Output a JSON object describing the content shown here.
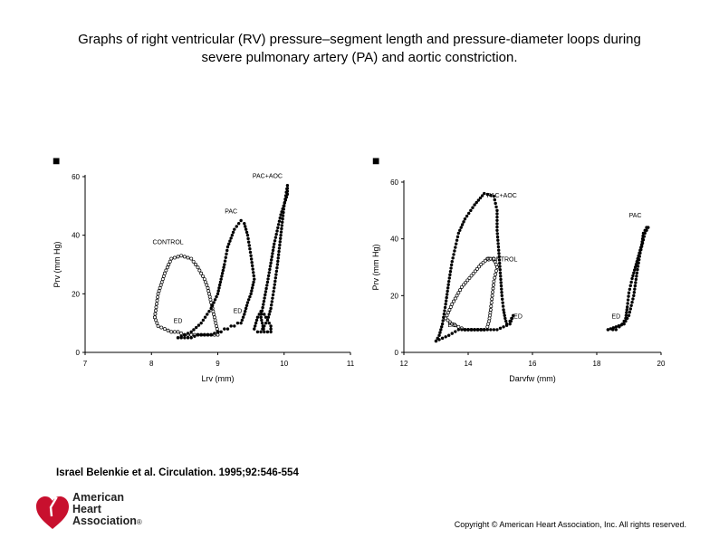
{
  "title_lines": [
    "Graphs of right ventricular (RV) pressure–segment length and pressure-diameter loops during",
    "severe pulmonary artery (PA) and aortic constriction."
  ],
  "citation": "Israel Belenkie et al. Circulation. 1995;92:546-554",
  "logo": {
    "line1": "American",
    "line2": "Heart",
    "line3": "Association",
    "mark": "®",
    "color": "#c8102e"
  },
  "copyright": "Copyright © American Heart Association, Inc. All rights reserved.",
  "chart_data": [
    {
      "type": "scatter",
      "panel_marker": "■",
      "xlabel": "Lrv (mm)",
      "ylabel": "Prv (mm Hg)",
      "xlim": [
        7,
        11
      ],
      "ylim": [
        0,
        60
      ],
      "xticks": [
        7,
        8,
        9,
        10,
        11
      ],
      "yticks": [
        0,
        20,
        40,
        60
      ],
      "annotations": [
        {
          "text": "CONTROL",
          "x": 8.25,
          "y": 37
        },
        {
          "text": "PAC",
          "x": 9.2,
          "y": 47.5
        },
        {
          "text": "PAC+AOC",
          "x": 9.75,
          "y": 59.5
        },
        {
          "text": "ED",
          "x": 8.4,
          "y": 10
        },
        {
          "text": "ED",
          "x": 9.3,
          "y": 13.5
        }
      ],
      "series": [
        {
          "marker": "open",
          "x": [
            8.05,
            8.1,
            8.2,
            8.3,
            8.45,
            8.6,
            8.7,
            8.8,
            8.85,
            8.9,
            8.95,
            9.0,
            9.0,
            8.9,
            8.8,
            8.7,
            8.6,
            8.5,
            8.4,
            8.3,
            8.2,
            8.1,
            8.05
          ],
          "y": [
            12,
            20,
            27,
            32,
            33,
            32,
            29,
            25,
            22,
            17,
            12,
            7,
            6,
            6,
            6,
            6,
            6,
            6,
            7,
            7,
            8,
            9,
            12
          ]
        },
        {
          "marker": "filled",
          "x": [
            8.4,
            8.6,
            8.75,
            8.9,
            9.0,
            9.05,
            9.1,
            9.15,
            9.25,
            9.35,
            9.4,
            9.45,
            9.5,
            9.55,
            9.5,
            9.45,
            9.4,
            9.35,
            9.3,
            9.25,
            9.2,
            9.15,
            9.1,
            9.05,
            9.0,
            8.9,
            8.8,
            8.7,
            8.6,
            8.5,
            8.4
          ],
          "y": [
            5,
            7,
            10,
            15,
            20,
            25,
            30,
            36,
            42,
            45,
            44,
            40,
            33,
            25,
            20,
            17,
            13,
            10,
            10,
            9,
            9,
            8,
            8,
            7,
            7,
            6,
            6,
            6,
            5,
            5,
            5
          ]
        },
        {
          "marker": "filled",
          "x": [
            9.65,
            9.75,
            9.85,
            9.95,
            10.05,
            10.05,
            10.0,
            9.95,
            9.9,
            9.85,
            9.8,
            9.75,
            9.7,
            9.65,
            9.6,
            9.55,
            9.6,
            9.65,
            9.7,
            9.75,
            9.8,
            9.8,
            9.75,
            9.7,
            9.65
          ],
          "y": [
            12,
            24,
            37,
            47,
            54,
            57,
            50,
            40,
            30,
            22,
            15,
            11,
            9,
            7,
            7,
            8,
            12,
            14,
            13,
            11,
            9,
            7,
            7,
            7,
            12
          ]
        }
      ]
    },
    {
      "type": "scatter",
      "panel_marker": "■",
      "xlabel": "Darvfw (mm)",
      "ylabel": "Prv (mm Hg)",
      "xlim": [
        12,
        20
      ],
      "ylim": [
        0,
        60
      ],
      "xticks": [
        12,
        14,
        16,
        18,
        20
      ],
      "yticks": [
        0,
        20,
        40,
        60
      ],
      "annotations": [
        {
          "text": "PAC+AOC",
          "x": 15.05,
          "y": 54.5
        },
        {
          "text": "CONTROL",
          "x": 15.05,
          "y": 32
        },
        {
          "text": "PAC",
          "x": 19.2,
          "y": 47.5
        },
        {
          "text": "ED",
          "x": 13.5,
          "y": 9
        },
        {
          "text": "ED",
          "x": 15.55,
          "y": 12
        },
        {
          "text": "ED",
          "x": 18.6,
          "y": 12
        }
      ],
      "series": [
        {
          "marker": "open",
          "x": [
            13.3,
            13.5,
            13.8,
            14.1,
            14.4,
            14.6,
            14.8,
            14.9,
            14.8,
            14.75,
            14.7,
            14.65,
            14.6,
            14.5,
            14.3,
            14.1,
            13.9,
            13.7,
            13.5,
            13.3
          ],
          "y": [
            12,
            17,
            23,
            27,
            31,
            33,
            33,
            30,
            25,
            20,
            15,
            11,
            9,
            8,
            8,
            8,
            8,
            9,
            10,
            12
          ]
        },
        {
          "marker": "filled",
          "x": [
            13.0,
            13.1,
            13.2,
            13.3,
            13.4,
            13.5,
            13.6,
            13.7,
            13.9,
            14.2,
            14.5,
            14.8,
            14.9,
            14.9,
            14.95,
            15.0,
            15.05,
            15.1,
            15.15,
            15.2,
            15.3,
            15.4,
            15.3,
            15.1,
            14.9,
            14.6,
            14.3,
            14.0,
            13.7,
            13.4,
            13.2,
            13.0
          ],
          "y": [
            4,
            6,
            10,
            17,
            25,
            32,
            37,
            42,
            47,
            52,
            56,
            55,
            50,
            43,
            36,
            28,
            20,
            15,
            12,
            10,
            11,
            13,
            10,
            9,
            8,
            8,
            8,
            8,
            8,
            6,
            5,
            4
          ]
        },
        {
          "marker": "filled",
          "x": [
            18.35,
            18.6,
            18.85,
            19.0,
            19.15,
            19.25,
            19.35,
            19.5,
            19.6,
            19.55,
            19.45,
            19.4,
            19.3,
            19.2,
            19.1,
            19.0,
            18.95,
            18.9,
            18.85,
            18.8,
            18.7,
            18.6,
            18.5,
            18.35
          ],
          "y": [
            8,
            9,
            10,
            13,
            20,
            28,
            35,
            42,
            44,
            44,
            42,
            38,
            34,
            30,
            26,
            21,
            16,
            12,
            11,
            10,
            9,
            8,
            8,
            8
          ]
        }
      ]
    }
  ]
}
